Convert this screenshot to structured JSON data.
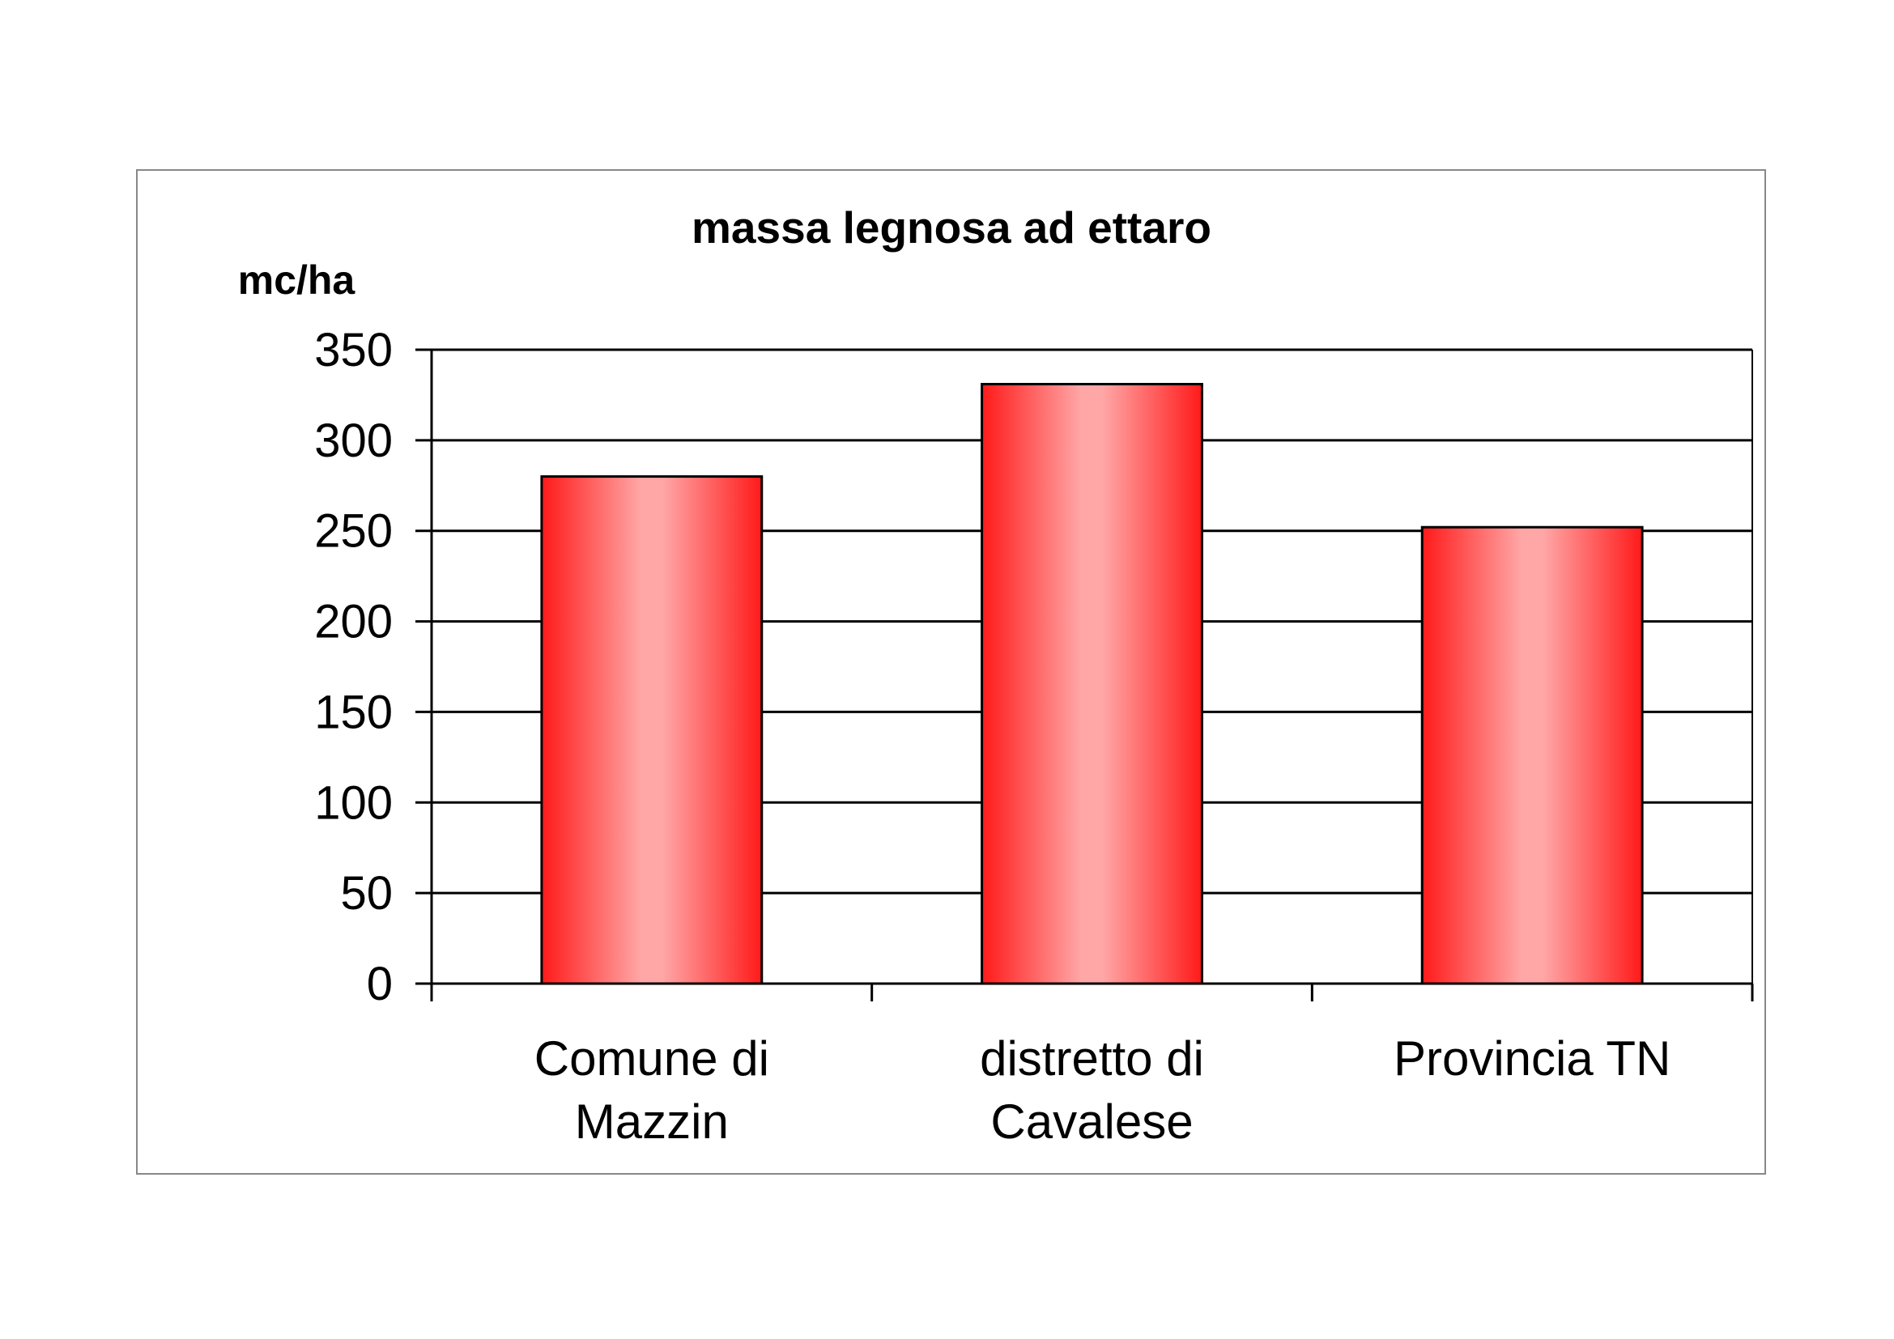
{
  "chart_data": {
    "type": "bar",
    "title": "massa legnosa ad ettaro",
    "xlabel": "",
    "ylabel": "mc/ha",
    "categories": [
      [
        "Comune di",
        "Mazzin"
      ],
      [
        "distretto di",
        "Cavalese"
      ],
      [
        "Provincia TN"
      ]
    ],
    "values": [
      280,
      331,
      252
    ],
    "ylim": [
      0,
      350
    ],
    "yticks": [
      0,
      50,
      100,
      150,
      200,
      250,
      300,
      350
    ],
    "grid": true,
    "legend": "none",
    "colors": {
      "bar_edge": "#ff1a1a",
      "bar_center": "#ffa6a6",
      "outline": "#000000"
    }
  }
}
